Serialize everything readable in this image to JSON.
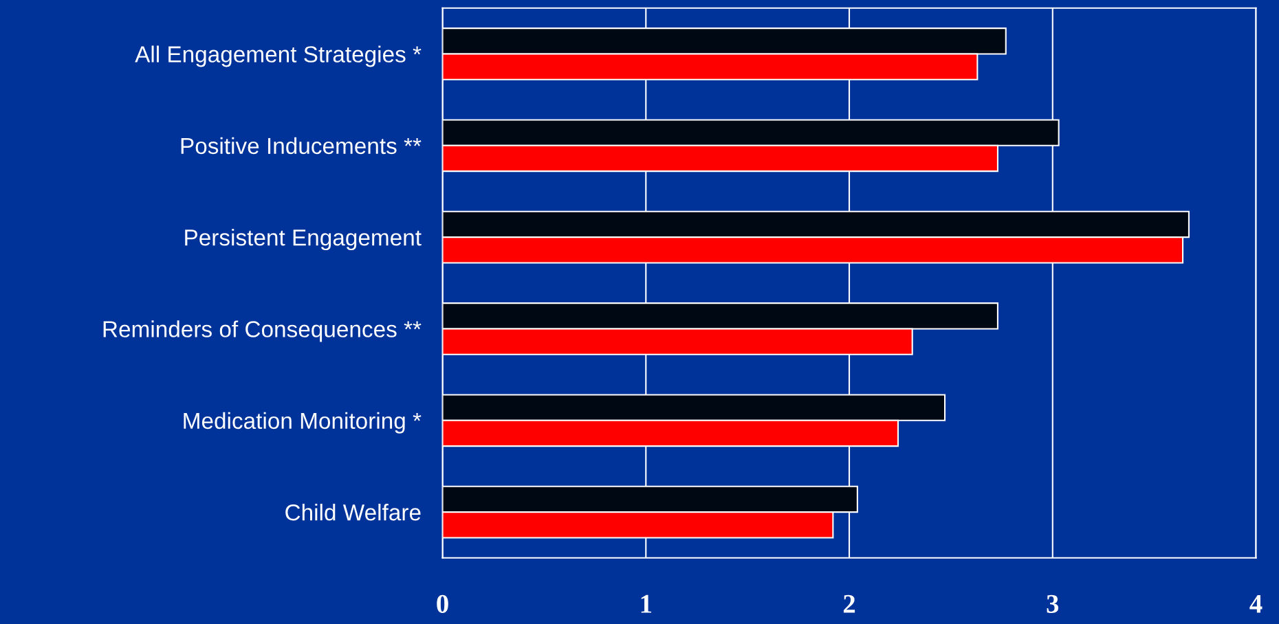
{
  "chart_data": {
    "type": "bar",
    "orientation": "horizontal",
    "categories": [
      "All Engagement Strategies *",
      "Positive Inducements **",
      "Persistent Engagement",
      "Reminders of Consequences **",
      "Medication Monitoring *",
      "Child Welfare"
    ],
    "series": [
      {
        "color": "#000814",
        "values": [
          2.77,
          3.03,
          3.67,
          2.73,
          2.47,
          2.04
        ]
      },
      {
        "color": "#ff0000",
        "values": [
          2.63,
          2.73,
          3.64,
          2.31,
          2.24,
          1.92
        ]
      }
    ],
    "xlim": [
      0,
      4
    ],
    "xticks": [
      0,
      1,
      2,
      3,
      4
    ],
    "grid": "x",
    "legend": false
  }
}
